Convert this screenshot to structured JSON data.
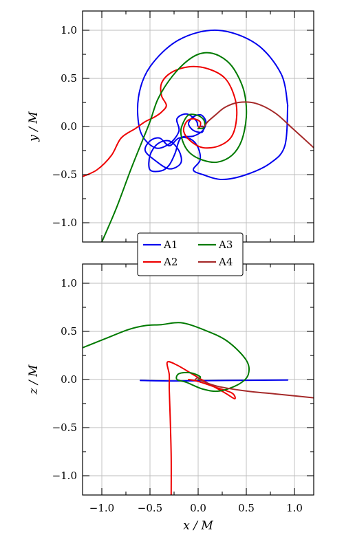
{
  "chart_data": [
    {
      "type": "line",
      "panel": "top",
      "xlabel": "",
      "ylabel": "y / M",
      "xlim": [
        -1.2,
        1.2
      ],
      "ylim": [
        -1.2,
        1.2
      ],
      "xticks": [
        -1.0,
        -0.5,
        0.0,
        0.5,
        1.0
      ],
      "yticks": [
        -1.0,
        -0.5,
        0.0,
        0.5,
        1.0
      ],
      "ytick_labels": [
        "−1.0",
        "−0.5",
        "0.0",
        "0.5",
        "1.0"
      ],
      "grid": true,
      "series": [
        {
          "name": "A1",
          "color": "#0000ee",
          "points": [
            [
              0.93,
              0.22
            ],
            [
              0.86,
              0.55
            ],
            [
              0.6,
              0.86
            ],
            [
              0.2,
              1.0
            ],
            [
              -0.2,
              0.9
            ],
            [
              -0.5,
              0.62
            ],
            [
              -0.62,
              0.3
            ],
            [
              -0.6,
              -0.05
            ],
            [
              -0.45,
              -0.22
            ],
            [
              -0.3,
              -0.18
            ],
            [
              -0.2,
              -0.05
            ],
            [
              -0.22,
              0.08
            ],
            [
              -0.12,
              0.13
            ],
            [
              -0.02,
              0.06
            ],
            [
              0.0,
              0.0
            ],
            [
              0.05,
              0.0
            ],
            [
              0.04,
              -0.06
            ],
            [
              -0.05,
              -0.04
            ],
            [
              -0.1,
              0.03
            ],
            [
              -0.05,
              0.1
            ],
            [
              0.03,
              0.12
            ],
            [
              0.08,
              0.05
            ],
            [
              0.05,
              -0.04
            ],
            [
              -0.05,
              -0.1
            ],
            [
              -0.18,
              -0.12
            ],
            [
              -0.24,
              -0.28
            ],
            [
              -0.3,
              -0.4
            ],
            [
              -0.38,
              -0.46
            ],
            [
              -0.5,
              -0.45
            ],
            [
              -0.5,
              -0.3
            ],
            [
              -0.42,
              -0.18
            ],
            [
              -0.3,
              -0.15
            ],
            [
              -0.2,
              -0.25
            ],
            [
              -0.18,
              -0.38
            ],
            [
              -0.3,
              -0.44
            ],
            [
              -0.45,
              -0.35
            ],
            [
              -0.55,
              -0.25
            ],
            [
              -0.5,
              -0.15
            ],
            [
              -0.4,
              -0.12
            ],
            [
              -0.3,
              -0.2
            ],
            [
              -0.2,
              -0.12
            ],
            [
              -0.08,
              -0.13
            ],
            [
              0.0,
              -0.22
            ],
            [
              0.02,
              -0.35
            ],
            [
              -0.05,
              -0.45
            ],
            [
              0.05,
              -0.5
            ],
            [
              0.25,
              -0.55
            ],
            [
              0.5,
              -0.5
            ],
            [
              0.75,
              -0.38
            ],
            [
              0.9,
              -0.2
            ],
            [
              0.93,
              0.22
            ]
          ]
        },
        {
          "name": "A2",
          "color": "#ee0000",
          "points": [
            [
              -1.2,
              -0.52
            ],
            [
              -1.05,
              -0.45
            ],
            [
              -0.9,
              -0.3
            ],
            [
              -0.8,
              -0.12
            ],
            [
              -0.65,
              -0.02
            ],
            [
              -0.55,
              0.05
            ],
            [
              -0.45,
              0.1
            ],
            [
              -0.38,
              0.15
            ],
            [
              -0.33,
              0.22
            ],
            [
              -0.38,
              0.32
            ],
            [
              -0.38,
              0.45
            ],
            [
              -0.28,
              0.56
            ],
            [
              -0.1,
              0.62
            ],
            [
              0.1,
              0.6
            ],
            [
              0.28,
              0.5
            ],
            [
              0.38,
              0.3
            ],
            [
              0.4,
              0.1
            ],
            [
              0.35,
              -0.1
            ],
            [
              0.22,
              -0.2
            ],
            [
              0.05,
              -0.22
            ],
            [
              -0.08,
              -0.15
            ],
            [
              -0.15,
              -0.05
            ],
            [
              -0.12,
              0.05
            ],
            [
              -0.05,
              0.08
            ],
            [
              0.02,
              0.05
            ],
            [
              0.02,
              0.0
            ],
            [
              0.0,
              -0.02
            ]
          ]
        },
        {
          "name": "A3",
          "color": "#007a00",
          "points": [
            [
              -1.0,
              -1.2
            ],
            [
              -0.85,
              -0.85
            ],
            [
              -0.7,
              -0.45
            ],
            [
              -0.58,
              -0.15
            ],
            [
              -0.5,
              0.05
            ],
            [
              -0.42,
              0.28
            ],
            [
              -0.3,
              0.48
            ],
            [
              -0.15,
              0.65
            ],
            [
              0.0,
              0.75
            ],
            [
              0.15,
              0.76
            ],
            [
              0.3,
              0.68
            ],
            [
              0.4,
              0.55
            ],
            [
              0.48,
              0.35
            ],
            [
              0.5,
              0.1
            ],
            [
              0.45,
              -0.15
            ],
            [
              0.35,
              -0.3
            ],
            [
              0.2,
              -0.37
            ],
            [
              0.05,
              -0.35
            ],
            [
              -0.08,
              -0.28
            ],
            [
              -0.15,
              -0.18
            ],
            [
              -0.18,
              -0.05
            ],
            [
              -0.15,
              0.05
            ],
            [
              -0.1,
              0.12
            ],
            [
              -0.02,
              0.12
            ],
            [
              0.05,
              0.08
            ],
            [
              0.07,
              0.02
            ],
            [
              0.05,
              -0.02
            ],
            [
              0.0,
              -0.02
            ]
          ]
        },
        {
          "name": "A4",
          "color": "#a52a2a",
          "points": [
            [
              0.0,
              0.0
            ],
            [
              0.06,
              0.0
            ],
            [
              0.1,
              0.05
            ],
            [
              0.18,
              0.12
            ],
            [
              0.28,
              0.2
            ],
            [
              0.42,
              0.25
            ],
            [
              0.6,
              0.24
            ],
            [
              0.8,
              0.14
            ],
            [
              0.98,
              -0.02
            ],
            [
              1.2,
              -0.22
            ]
          ]
        }
      ]
    },
    {
      "type": "line",
      "panel": "bottom",
      "xlabel": "x / M",
      "ylabel": "z / M",
      "xlim": [
        -1.2,
        1.2
      ],
      "ylim": [
        -1.2,
        1.2
      ],
      "xticks": [
        -1.0,
        -0.5,
        0.0,
        0.5,
        1.0
      ],
      "yticks": [
        -1.0,
        -0.5,
        0.0,
        0.5,
        1.0
      ],
      "xtick_labels": [
        "−1.0",
        "−0.5",
        "0.0",
        "0.5",
        "1.0"
      ],
      "ytick_labels": [
        "−1.0",
        "−0.5",
        "0.0",
        "0.5",
        "1.0"
      ],
      "grid": true,
      "series": [
        {
          "name": "A1",
          "color": "#0000ee",
          "points": [
            [
              -0.6,
              -0.01
            ],
            [
              -0.2,
              -0.015
            ],
            [
              0.3,
              -0.01
            ],
            [
              0.93,
              -0.005
            ]
          ]
        },
        {
          "name": "A2",
          "color": "#ee0000",
          "points": [
            [
              -0.28,
              -1.2
            ],
            [
              -0.28,
              -0.8
            ],
            [
              -0.29,
              -0.4
            ],
            [
              -0.3,
              -0.1
            ],
            [
              -0.3,
              0.05
            ],
            [
              -0.32,
              0.18
            ],
            [
              -0.22,
              0.15
            ],
            [
              -0.05,
              0.05
            ],
            [
              0.12,
              -0.05
            ],
            [
              0.28,
              -0.14
            ],
            [
              0.38,
              -0.2
            ],
            [
              0.35,
              -0.14
            ],
            [
              0.18,
              -0.08
            ],
            [
              0.0,
              -0.02
            ],
            [
              -0.1,
              0.0
            ]
          ]
        },
        {
          "name": "A3",
          "color": "#007a00",
          "points": [
            [
              -1.2,
              0.33
            ],
            [
              -0.95,
              0.43
            ],
            [
              -0.72,
              0.52
            ],
            [
              -0.55,
              0.56
            ],
            [
              -0.38,
              0.57
            ],
            [
              -0.18,
              0.59
            ],
            [
              0.05,
              0.52
            ],
            [
              0.3,
              0.4
            ],
            [
              0.5,
              0.2
            ],
            [
              0.52,
              0.05
            ],
            [
              0.42,
              -0.05
            ],
            [
              0.22,
              -0.12
            ],
            [
              0.05,
              -0.1
            ],
            [
              -0.12,
              -0.03
            ],
            [
              -0.22,
              0.0
            ],
            [
              -0.2,
              0.06
            ],
            [
              -0.08,
              0.07
            ],
            [
              0.02,
              0.03
            ],
            [
              0.0,
              0.0
            ]
          ]
        },
        {
          "name": "A4",
          "color": "#a52a2a",
          "points": [
            [
              -0.03,
              0.0
            ],
            [
              0.0,
              0.02
            ],
            [
              0.03,
              -0.01
            ],
            [
              0.2,
              -0.07
            ],
            [
              0.5,
              -0.12
            ],
            [
              0.8,
              -0.15
            ],
            [
              1.2,
              -0.19
            ]
          ]
        }
      ]
    }
  ],
  "legend": {
    "entries": [
      {
        "label": "A1",
        "color": "#0000ee"
      },
      {
        "label": "A3",
        "color": "#007a00"
      },
      {
        "label": "A2",
        "color": "#ee0000"
      },
      {
        "label": "A4",
        "color": "#a52a2a"
      }
    ]
  }
}
